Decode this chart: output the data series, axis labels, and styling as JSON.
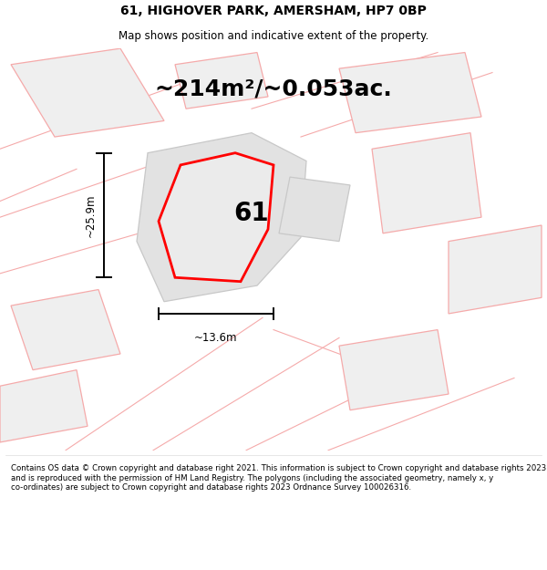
{
  "title": "61, HIGHOVER PARK, AMERSHAM, HP7 0BP",
  "subtitle": "Map shows position and indicative extent of the property.",
  "area_text": "~214m²/~0.053ac.",
  "plot_number": "61",
  "width_label": "~13.6m",
  "height_label": "~25.9m",
  "footer_text": "Contains OS data © Crown copyright and database right 2021. This information is subject to Crown copyright and database rights 2023 and is reproduced with the permission of HM Land Registry. The polygons (including the associated geometry, namely x, y co-ordinates) are subject to Crown copyright and database rights 2023 Ordnance Survey 100026316.",
  "background_color": "#ffffff",
  "plot_color": "#ff0000",
  "neighbor_edge": "#f5aaaa",
  "neighbor_fill": "#efefef",
  "gray_fill": "#e2e2e2",
  "gray_edge": "#c8c8c8",
  "figsize": [
    6.0,
    6.25
  ],
  "dpi": 100,
  "title_fontsize": 10,
  "subtitle_fontsize": 8.5,
  "area_fontsize": 18,
  "plot_label_fontsize": 20,
  "dim_fontsize": 8.5,
  "footer_fontsize": 6.2
}
